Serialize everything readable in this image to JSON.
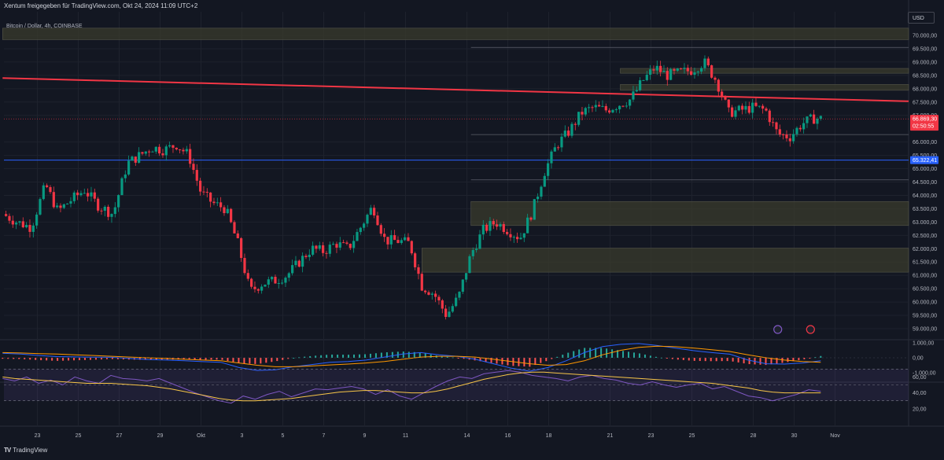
{
  "header": {
    "published_by": "Xentum freigegeben für TradingView.com, Okt 24, 2024 11:09 UTC+2",
    "symbol": "Bitcoin / Dollar, 4h, COINBASE",
    "currency": "USD"
  },
  "footer": {
    "logo_mark": "TV",
    "logo_text": "TradingView"
  },
  "chart_data": {
    "type": "candlestick",
    "title": "Bitcoin / Dollar, 4h, COINBASE",
    "price_axis": {
      "range": [
        58850,
        70300
      ],
      "ticks": [
        "70.000,00",
        "69.500,00",
        "69.000,00",
        "68.500,00",
        "68.000,00",
        "67.500,00",
        "67.000,00",
        "66.000,00",
        "65.500,00",
        "65.000,00",
        "64.500,00",
        "64.000,00",
        "63.500,00",
        "63.000,00",
        "62.500,00",
        "62.000,00",
        "61.500,00",
        "61.000,00",
        "60.500,00",
        "60.000,00",
        "59.500,00",
        "59.000,00"
      ],
      "tick_values": [
        70000,
        69500,
        69000,
        68500,
        68000,
        67500,
        67000,
        66000,
        65500,
        65000,
        64500,
        64000,
        63500,
        63000,
        62500,
        62000,
        61500,
        61000,
        60500,
        60000,
        59500,
        59000
      ],
      "current_price": "66.869,30",
      "current_price_value": 66869.3,
      "countdown": "02:50:55",
      "horizontal_line_label": "65.322,41",
      "horizontal_line_value": 65322.41
    },
    "time_axis": {
      "labels": [
        "23",
        "25",
        "27",
        "29",
        "Okt",
        "3",
        "5",
        "7",
        "9",
        "11",
        "14",
        "16",
        "18",
        "21",
        "23",
        "25",
        "28",
        "30",
        "Nov"
      ],
      "label_days": [
        -8,
        -6,
        -4,
        -2,
        0,
        2,
        4,
        6,
        8,
        10,
        13,
        15,
        17,
        20,
        22,
        24,
        27,
        29,
        31
      ]
    },
    "trendline": {
      "color": "#f23645",
      "start": {
        "day": -9.7,
        "price": 68400
      },
      "end": {
        "day": 34.7,
        "price": 67530
      }
    },
    "zones": [
      {
        "from_day": -9.7,
        "to_day": 34.7,
        "low": 69840,
        "high": 70270
      },
      {
        "from_day": 20.5,
        "to_day": 34.7,
        "low": 68580,
        "high": 68760
      },
      {
        "from_day": 20.5,
        "to_day": 34.7,
        "low": 67940,
        "high": 68160
      },
      {
        "from_day": 13.2,
        "to_day": 34.7,
        "low": 62870,
        "high": 63770
      },
      {
        "from_day": 10.8,
        "to_day": 34.7,
        "low": 61120,
        "high": 62020
      }
    ],
    "key_levels": [
      69550,
      66280,
      64580
    ],
    "price_path": [
      [
        -9.7,
        63300
      ],
      [
        -9.0,
        63000
      ],
      [
        -8.3,
        62800
      ],
      [
        -7.6,
        64400
      ],
      [
        -7.0,
        63400
      ],
      [
        -6.4,
        63800
      ],
      [
        -5.7,
        64200
      ],
      [
        -5.0,
        63600
      ],
      [
        -4.3,
        63300
      ],
      [
        -3.6,
        65200
      ],
      [
        -3.0,
        65500
      ],
      [
        -2.4,
        65800
      ],
      [
        -1.8,
        65700
      ],
      [
        -1.2,
        65900
      ],
      [
        -0.6,
        65500
      ],
      [
        0.0,
        64100
      ],
      [
        0.6,
        63700
      ],
      [
        1.2,
        63500
      ],
      [
        1.8,
        62200
      ],
      [
        2.4,
        60400
      ],
      [
        3.0,
        60700
      ],
      [
        3.6,
        60800
      ],
      [
        4.2,
        61000
      ],
      [
        4.8,
        61500
      ],
      [
        5.4,
        62000
      ],
      [
        6.0,
        61900
      ],
      [
        6.6,
        62200
      ],
      [
        7.2,
        62000
      ],
      [
        7.8,
        62800
      ],
      [
        8.4,
        63600
      ],
      [
        9.0,
        62300
      ],
      [
        9.6,
        62300
      ],
      [
        10.2,
        62200
      ],
      [
        10.8,
        60600
      ],
      [
        11.4,
        60300
      ],
      [
        12.0,
        59500
      ],
      [
        12.6,
        60200
      ],
      [
        13.2,
        61800
      ],
      [
        13.8,
        62700
      ],
      [
        14.4,
        63000
      ],
      [
        15.0,
        62700
      ],
      [
        15.6,
        62400
      ],
      [
        16.2,
        63400
      ],
      [
        16.8,
        64900
      ],
      [
        17.4,
        65900
      ],
      [
        18.0,
        66400
      ],
      [
        18.6,
        67100
      ],
      [
        19.2,
        67300
      ],
      [
        19.8,
        67200
      ],
      [
        20.4,
        67400
      ],
      [
        21.0,
        67600
      ],
      [
        21.6,
        68300
      ],
      [
        22.2,
        68800
      ],
      [
        22.8,
        68500
      ],
      [
        23.4,
        68600
      ],
      [
        24.0,
        68700
      ],
      [
        24.6,
        69000
      ],
      [
        25.2,
        68300
      ],
      [
        25.8,
        67100
      ],
      [
        26.4,
        67200
      ],
      [
        27.0,
        67300
      ],
      [
        27.6,
        67200
      ],
      [
        28.2,
        66300
      ],
      [
        28.8,
        66200
      ],
      [
        29.4,
        66700
      ],
      [
        30.0,
        66900
      ],
      [
        30.3,
        66870
      ]
    ],
    "macd": {
      "axis_ticks": [
        "1.000,00",
        "0,00",
        "-1.000,00"
      ],
      "tick_values": [
        1000,
        0,
        -1000
      ],
      "series": [
        {
          "name": "MACD",
          "color": "#2962ff",
          "values": [
            300,
            250,
            150,
            80,
            60,
            40,
            30,
            -50,
            -120,
            -150,
            -200,
            -260,
            -300,
            -650,
            -850,
            -800,
            -600,
            -450,
            -300,
            -250,
            -150,
            50,
            250,
            350,
            200,
            100,
            -100,
            -400,
            -700,
            -900,
            -650,
            -200,
            350,
            750,
            900,
            950,
            820,
            650,
            480,
            350,
            240,
            -150,
            -400,
            -420,
            -350,
            -200
          ]
        },
        {
          "name": "Signal",
          "color": "#ff9800",
          "values": [
            350,
            320,
            280,
            250,
            200,
            150,
            100,
            50,
            0,
            -50,
            -100,
            -150,
            -200,
            -350,
            -500,
            -600,
            -600,
            -550,
            -480,
            -420,
            -350,
            -250,
            -100,
            50,
            100,
            100,
            50,
            -100,
            -250,
            -400,
            -500,
            -450,
            -200,
            200,
            500,
            700,
            780,
            740,
            650,
            540,
            420,
            200,
            0,
            -150,
            -250,
            -300
          ]
        }
      ]
    },
    "rsi": {
      "axis_ticks": [
        "60,00",
        "40,00",
        "20,00"
      ],
      "tick_values": [
        60,
        40,
        20
      ],
      "band": [
        30,
        70
      ],
      "series": [
        {
          "name": "RSI",
          "color": "#7e57c2",
          "values": [
            58,
            55,
            60,
            52,
            56,
            50,
            60,
            55,
            52,
            62,
            58,
            57,
            55,
            58,
            52,
            46,
            40,
            35,
            30,
            27,
            36,
            32,
            38,
            42,
            35,
            40,
            45,
            44,
            46,
            48,
            45,
            38,
            44,
            36,
            32,
            40,
            48,
            55,
            60,
            58,
            64,
            66,
            68,
            66,
            62,
            60,
            58,
            55,
            60,
            62,
            58,
            56,
            52,
            50,
            54,
            50,
            47,
            50,
            52,
            45,
            48,
            42,
            36,
            34,
            30,
            34,
            38,
            44,
            42
          ]
        },
        {
          "name": "RSI-based MA",
          "color": "#f7c548",
          "values": [
            60,
            58,
            57,
            56,
            55,
            54,
            53,
            52,
            52,
            52,
            51,
            50,
            49,
            47,
            45,
            42,
            39,
            36,
            33,
            31,
            30,
            30,
            31,
            32,
            33,
            35,
            37,
            39,
            41,
            42,
            43,
            43,
            42,
            41,
            40,
            40,
            42,
            45,
            49,
            53,
            57,
            60,
            63,
            65,
            66,
            66,
            65,
            64,
            63,
            62,
            61,
            60,
            59,
            58,
            57,
            56,
            55,
            54,
            53,
            52,
            50,
            48,
            46,
            43,
            41,
            40,
            40,
            40,
            40
          ]
        }
      ]
    }
  }
}
